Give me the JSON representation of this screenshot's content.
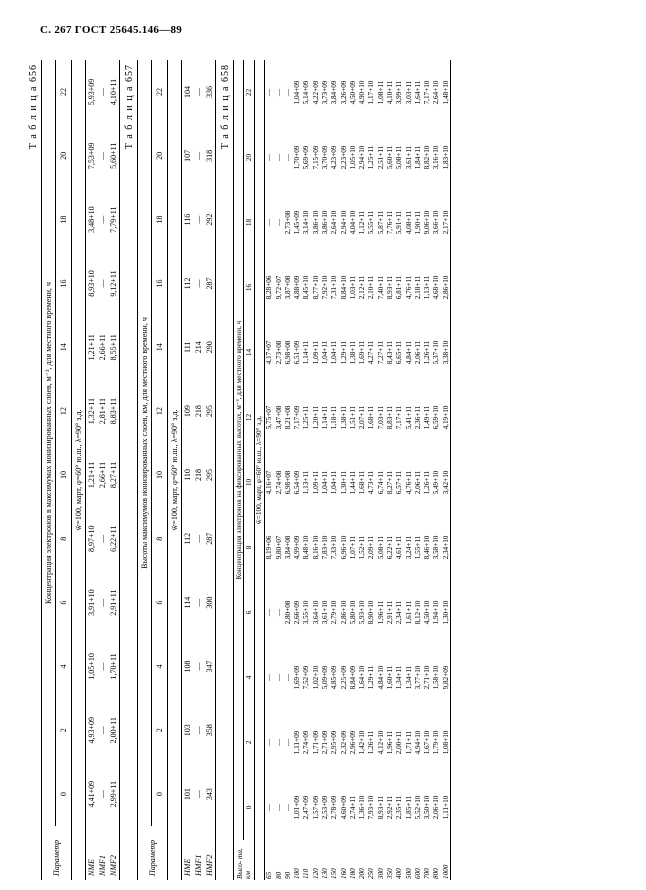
{
  "header": "С. 267 ГОСТ 25645.146—89",
  "tables": [
    {
      "label": "Т а б л и ц а  656",
      "caption": "Концентрация электронов в максимумах ионизированных слоев, м⁻³, для местного времени, ч",
      "param_head": "Параметр",
      "cond": "w̄=100, март, φ=60° ю.ш., λ=90° з.д.",
      "cols": [
        "0",
        "2",
        "4",
        "6",
        "8",
        "10",
        "12",
        "14",
        "16",
        "18",
        "20",
        "22"
      ],
      "rows": [
        {
          "p": "NME",
          "v": [
            "4,41+09",
            "4,93+09",
            "1,05+10",
            "3,91+10",
            "8,97+10",
            "1,21+11",
            "1,32+11",
            "1,21+11",
            "8,93+10",
            "3,48+10",
            "7,53+09",
            "5,93+09"
          ]
        },
        {
          "p": "NMF1",
          "v": [
            "—",
            "—",
            "—",
            "—",
            "—",
            "2,66+11",
            "2,81+11",
            "2,66+11",
            "—",
            "—",
            "—",
            "—"
          ]
        },
        {
          "p": "NMF2",
          "v": [
            "2,99+11",
            "2,00+11",
            "1,70+11",
            "2,91+11",
            "6,22+11",
            "8,27+11",
            "8,83+11",
            "8,55+11",
            "9,12+11",
            "7,79+11",
            "5,60+11",
            "4,10+11"
          ]
        }
      ]
    },
    {
      "label": "Т а б л и ц а  657",
      "caption": "Высоты максимумов ионизированных слоев, км, для местного времени, ч",
      "param_head": "Параметр",
      "cond": "w̄=100, март, φ=60° ю.ш., λ=90° з.д.",
      "cols": [
        "0",
        "2",
        "4",
        "6",
        "8",
        "10",
        "12",
        "14",
        "16",
        "18",
        "20",
        "22"
      ],
      "rows": [
        {
          "p": "HME",
          "v": [
            "101",
            "103",
            "108",
            "114",
            "112",
            "110",
            "109",
            "111",
            "112",
            "116",
            "107",
            "104"
          ]
        },
        {
          "p": "HMF1",
          "v": [
            "—",
            "—",
            "—",
            "—",
            "—",
            "218",
            "218",
            "214",
            "—",
            "—",
            "—",
            "—"
          ]
        },
        {
          "p": "HMF2",
          "v": [
            "343",
            "358",
            "347",
            "300",
            "287",
            "295",
            "295",
            "290",
            "287",
            "292",
            "318",
            "336"
          ]
        }
      ]
    },
    {
      "label": "Т а б л и ц а  658",
      "caption": "Концентрация электронов на фиксированных высотах, м⁻³, для местного времени, ч",
      "param_head": "Высо-\nта, км",
      "cond": "w̄=100, март, φ=60° ю.ш., λ=90° з.д.",
      "cols": [
        "0",
        "2",
        "4",
        "6",
        "8",
        "10",
        "12",
        "14",
        "16",
        "18",
        "20",
        "22"
      ],
      "rows": [
        {
          "p": "65",
          "v": [
            "—",
            "—",
            "—",
            "—",
            "8,19+06",
            "4,16+07",
            "5,75+07",
            "4,17+07",
            "8,28+06",
            "—",
            "—",
            "—"
          ]
        },
        {
          "p": "80",
          "v": [
            "—",
            "—",
            "—",
            "—",
            "9,80+07",
            "2,74+08",
            "3,47+08",
            "2,73+08",
            "9,72+07",
            "—",
            "—",
            "—"
          ]
        },
        {
          "p": "90",
          "v": [
            "—",
            "—",
            "—",
            "2,80+08",
            "3,84+08",
            "6,98+08",
            "8,21+08",
            "6,98+08",
            "3,87+08",
            "2,73+08",
            "—",
            "—"
          ]
        },
        {
          "p": "100",
          "v": [
            "1,01+09",
            "1,11+09",
            "1,69+09",
            "2,66+09",
            "4,99+09",
            "6,54+09",
            "7,17+09",
            "6,51+09",
            "4,88+09",
            "1,45+09",
            "1,70+09",
            "1,04+09"
          ]
        },
        {
          "p": "110",
          "v": [
            "2,47+09",
            "2,74+09",
            "7,52+09",
            "3,55+10",
            "8,48+10",
            "1,13+11",
            "1,25+11",
            "1,14+11",
            "8,45+10",
            "3,14+10",
            "5,69+09",
            "5,14+09"
          ]
        },
        {
          "p": "120",
          "v": [
            "1,57+09",
            "1,71+09",
            "1,02+10",
            "3,64+10",
            "8,16+10",
            "1,09+11",
            "1,20+11",
            "1,09+11",
            "8,77+10",
            "3,86+10",
            "7,15+09",
            "4,22+09"
          ]
        },
        {
          "p": "130",
          "v": [
            "2,53+09",
            "2,71+09",
            "5,09+09",
            "3,61+10",
            "7,83+10",
            "1,04+11",
            "1,14+11",
            "1,04+11",
            "7,92+10",
            "3,86+10",
            "3,70+09",
            "3,73+09"
          ]
        },
        {
          "p": "150",
          "v": [
            "2,78+09",
            "2,95+09",
            "4,85+09",
            "2,79+10",
            "7,33+10",
            "1,04+11",
            "1,18+11",
            "1,04+11",
            "7,31+10",
            "2,64+10",
            "4,23+09",
            "3,84+09"
          ]
        },
        {
          "p": "160",
          "v": [
            "4,60+09",
            "2,32+09",
            "2,25+09",
            "2,86+10",
            "6,96+10",
            "1,30+11",
            "1,38+11",
            "1,29+11",
            "8,84+10",
            "2,94+10",
            "2,23+09",
            "3,26+09"
          ]
        },
        {
          "p": "180",
          "v": [
            "2,74+11",
            "2,96+09",
            "8,84+09",
            "5,80+10",
            "1,07+11",
            "1,44+11",
            "1,51+11",
            "1,38+11",
            "1,03+11",
            "4,04+10",
            "1,05+10",
            "4,50+09"
          ]
        },
        {
          "p": "200",
          "v": [
            "1,36+10",
            "1,42+10",
            "1,64+10",
            "5,93+10",
            "1,52+11",
            "1,68+11",
            "2,07+11",
            "1,69+11",
            "2,12+11",
            "1,12+11",
            "2,94+10",
            "4,90+10"
          ]
        },
        {
          "p": "250",
          "v": [
            "7,93+10",
            "1,26+11",
            "1,29+11",
            "8,90+10",
            "2,09+11",
            "4,73+11",
            "1,68+11",
            "4,27+11",
            "2,10+11",
            "5,55+11",
            "1,25+11",
            "1,17+10"
          ]
        },
        {
          "p": "300",
          "v": [
            "8,93+11",
            "4,12+10",
            "4,84+10",
            "1,96+11",
            "5,08+11",
            "6,74+11",
            "7,03+11",
            "7,27+11",
            "7,40+11",
            "5,87+11",
            "2,51+11",
            "1,08+11"
          ]
        },
        {
          "p": "350",
          "v": [
            "2,92+11",
            "1,96+11",
            "1,60+11",
            "2,91+11",
            "6,22+11",
            "8,27+11",
            "8,83+11",
            "8,43+11",
            "8,93+11",
            "7,76+11",
            "5,60+11",
            "4,10+11"
          ]
        },
        {
          "p": "400",
          "v": [
            "2,35+11",
            "2,00+11",
            "1,34+11",
            "2,34+11",
            "4,61+11",
            "6,57+11",
            "7,17+11",
            "6,65+11",
            "6,81+11",
            "5,91+11",
            "5,08+11",
            "3,99+11"
          ]
        },
        {
          "p": "500",
          "v": [
            "1,85+11",
            "1,71+11",
            "1,34+11",
            "1,61+11",
            "3,24+11",
            "4,76+11",
            "5,41+11",
            "4,84+11",
            "4,76+11",
            "4,08+11",
            "3,61+11",
            "3,03+11"
          ]
        },
        {
          "p": "600",
          "v": [
            "5,52+10",
            "4,94+10",
            "3,77+10",
            "8,12+10",
            "1,55+11",
            "2,06+11",
            "2,36+11",
            "2,06+11",
            "2,18+11",
            "1,90+11",
            "1,84+11",
            "1,64+11"
          ]
        },
        {
          "p": "700",
          "v": [
            "3,50+10",
            "1,67+10",
            "2,71+10",
            "4,50+10",
            "8,46+10",
            "1,26+11",
            "1,49+11",
            "1,26+11",
            "1,13+11",
            "9,06+10",
            "8,82+10",
            "7,17+10"
          ]
        },
        {
          "p": "800",
          "v": [
            "2,06+10",
            "1,79+10",
            "1,58+10",
            "1,94+10",
            "3,58+10",
            "5,49+10",
            "6,59+10",
            "5,37+10",
            "4,68+10",
            "3,66+10",
            "3,16+10",
            "2,64+10"
          ]
        },
        {
          "p": "1000",
          "v": [
            "1,11+10",
            "1,08+10",
            "9,82+09",
            "1,30+10",
            "2,34+10",
            "3,42+10",
            "4,19+10",
            "3,38+10",
            "2,86+10",
            "2,17+10",
            "1,83+10",
            "1,48+10"
          ]
        }
      ]
    }
  ]
}
